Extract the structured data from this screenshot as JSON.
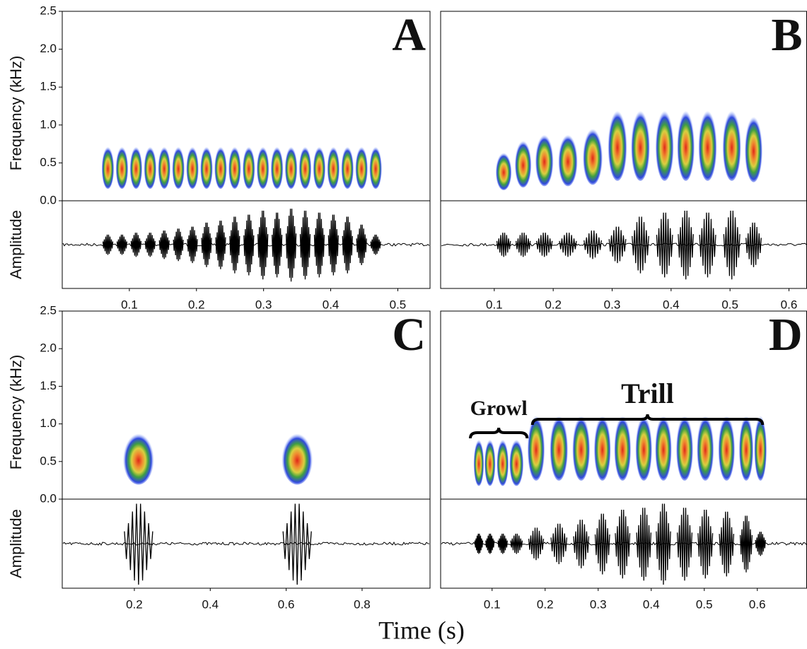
{
  "labels": {
    "frequency": "Frequency (kHz)",
    "amplitude": "Amplitude",
    "time": "Time (s)"
  },
  "chart_data": [
    {
      "type": "spectrogram",
      "panel": "A",
      "xlim": [
        0,
        0.548
      ],
      "xticks": [
        0.1,
        0.2,
        0.3,
        0.4,
        0.5
      ],
      "ylim": [
        0,
        2.5
      ],
      "yticks": [
        {
          "value": 0,
          "label": "0.0"
        },
        0.5,
        {
          "value": 1,
          "label": "1.0"
        },
        1.5,
        {
          "value": 2,
          "label": "2.0"
        },
        2.5
      ],
      "x": [
        0.068,
        0.089,
        0.11,
        0.131,
        0.152,
        0.173,
        0.194,
        0.215,
        0.236,
        0.257,
        0.278,
        0.299,
        0.32,
        0.341,
        0.362,
        0.383,
        0.404,
        0.425,
        0.446,
        0.467
      ],
      "values": [
        0.45,
        0.45,
        0.45,
        0.45,
        0.45,
        0.45,
        0.45,
        0.45,
        0.45,
        0.45,
        0.45,
        0.45,
        0.45,
        0.45,
        0.45,
        0.45,
        0.45,
        0.45,
        0.45,
        0.45
      ],
      "amplitude": [
        0.25,
        0.25,
        0.3,
        0.3,
        0.35,
        0.4,
        0.45,
        0.55,
        0.6,
        0.7,
        0.75,
        0.85,
        0.8,
        0.9,
        0.85,
        0.8,
        0.75,
        0.7,
        0.5,
        0.25
      ]
    },
    {
      "type": "spectrogram",
      "panel": "B",
      "xlim": [
        0.009,
        0.63
      ],
      "xticks": [
        0.1,
        0.2,
        0.3,
        0.4,
        0.5,
        0.6
      ],
      "ylim": [
        0,
        2.5
      ],
      "x": [
        0.116,
        0.149,
        0.185,
        0.225,
        0.267,
        0.309,
        0.348,
        0.389,
        0.425,
        0.462,
        0.503,
        0.54
      ],
      "values": [
        0.4,
        0.5,
        0.55,
        0.55,
        0.6,
        0.75,
        0.75,
        0.75,
        0.75,
        0.75,
        0.75,
        0.7
      ],
      "amplitude": [
        0.3,
        0.3,
        0.3,
        0.3,
        0.35,
        0.45,
        0.7,
        0.8,
        0.85,
        0.8,
        0.85,
        0.55
      ]
    },
    {
      "type": "spectrogram",
      "panel": "C",
      "xlim": [
        0.01,
        0.979
      ],
      "xticks": [
        0.2,
        0.4,
        0.6,
        0.8
      ],
      "ylim": [
        0,
        2.5
      ],
      "yticks": [
        {
          "value": 0,
          "label": "0.0"
        },
        0.5,
        {
          "value": 1,
          "label": "1.0"
        },
        1.5,
        {
          "value": 2,
          "label": "2.0"
        },
        2.5
      ],
      "x": [
        0.211,
        0.629
      ],
      "values": [
        0.55,
        0.55
      ],
      "amplitude": [
        1,
        1
      ]
    },
    {
      "type": "spectrogram",
      "panel": "D",
      "xlim": [
        0.003,
        0.693
      ],
      "xticks": [
        0.1,
        0.2,
        0.3,
        0.4,
        0.5,
        0.6
      ],
      "ylim": [
        0,
        2.5
      ],
      "x": [
        0.075,
        0.096,
        0.12,
        0.146,
        0.183,
        0.226,
        0.268,
        0.308,
        0.346,
        0.386,
        0.423,
        0.463,
        0.502,
        0.542,
        0.579,
        0.606
      ],
      "values": [
        0.5,
        0.5,
        0.5,
        0.5,
        0.7,
        0.7,
        0.7,
        0.7,
        0.7,
        0.7,
        0.7,
        0.7,
        0.7,
        0.7,
        0.7,
        0.7
      ],
      "amplitude": [
        0.25,
        0.25,
        0.25,
        0.25,
        0.4,
        0.5,
        0.6,
        0.75,
        0.85,
        0.9,
        1,
        0.9,
        0.85,
        0.8,
        0.7,
        0.3
      ],
      "annotations": [
        {
          "text": "Growl",
          "xrange": [
            0.059,
            0.166
          ]
        },
        {
          "text": "Trill",
          "xrange": [
            0.176,
            0.61
          ]
        }
      ]
    }
  ]
}
